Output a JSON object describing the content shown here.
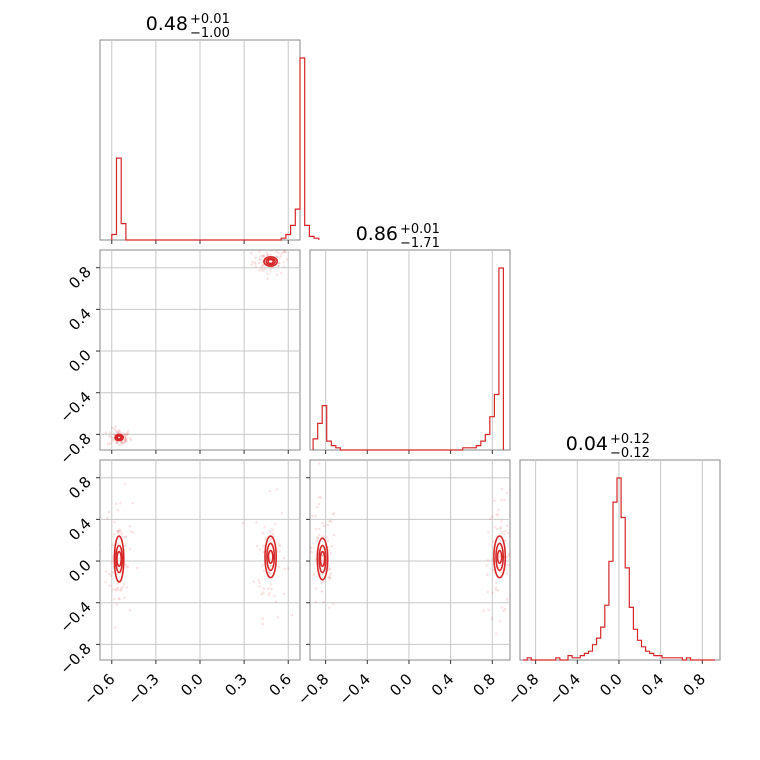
{
  "chart_data": {
    "type": "corner",
    "color": "#d62728",
    "params": [
      {
        "median": "0.48",
        "plus": "+0.01",
        "minus": "−1.00",
        "range": [
          -0.68,
          0.68
        ],
        "ticks": [
          -0.6,
          -0.3,
          0.0,
          0.3,
          0.6
        ],
        "tick_labels": [
          "−0.6",
          "−0.3",
          "0.0",
          "0.3",
          "0.6"
        ]
      },
      {
        "median": "0.86",
        "plus": "+0.01",
        "minus": "−1.71",
        "range": [
          -0.95,
          0.97
        ],
        "ticks": [
          -0.8,
          -0.4,
          0.0,
          0.4,
          0.8
        ],
        "tick_labels": [
          "−0.8",
          "−0.4",
          "0.0",
          "0.4",
          "0.8"
        ]
      },
      {
        "median": "0.04",
        "plus": "+0.12",
        "minus": "−0.12",
        "range": [
          -0.95,
          0.97
        ],
        "ticks": [
          -0.8,
          -0.4,
          0.0,
          0.4,
          0.8
        ],
        "tick_labels": [
          "−0.8",
          "−0.4",
          "0.0",
          "0.4",
          "0.8"
        ]
      }
    ],
    "histograms": [
      {
        "param": 0,
        "edges_start": -0.6,
        "bin_width": 0.032,
        "counts": [
          0.03,
          0.45,
          0.09,
          0,
          0,
          0,
          0,
          0,
          0,
          0,
          0,
          0,
          0,
          0,
          0,
          0,
          0,
          0,
          0,
          0,
          0,
          0,
          0,
          0,
          0,
          0,
          0,
          0,
          0,
          0,
          0,
          0,
          0,
          0,
          0,
          0,
          0.01,
          0.03,
          0.08,
          0.17,
          1.0,
          0.08,
          0.02,
          0.01
        ]
      },
      {
        "param": 1,
        "edges_start": -0.92,
        "bin_width": 0.0435,
        "counts": [
          0.05,
          0.12,
          0.2,
          0.04,
          0.02,
          0.01,
          0,
          0,
          0,
          0,
          0,
          0,
          0,
          0,
          0,
          0,
          0,
          0,
          0,
          0,
          0,
          0,
          0,
          0,
          0,
          0,
          0,
          0,
          0,
          0,
          0,
          0,
          0,
          0.01,
          0.01,
          0.01,
          0.02,
          0.04,
          0.07,
          0.15,
          0.25,
          0.82
        ]
      },
      {
        "param": 2,
        "edges_start": -0.92,
        "bin_width": 0.0392,
        "counts": [
          0,
          0.01,
          0,
          0,
          0,
          0,
          0,
          0,
          0.01,
          0,
          0,
          0.02,
          0.01,
          0.01,
          0.02,
          0.03,
          0.04,
          0.07,
          0.1,
          0.15,
          0.25,
          0.45,
          0.72,
          0.83,
          0.65,
          0.42,
          0.24,
          0.14,
          0.09,
          0.06,
          0.04,
          0.03,
          0.02,
          0.02,
          0.01,
          0.01,
          0.01,
          0.01,
          0.01,
          0.0,
          0.01,
          0.0,
          0.0,
          0.0,
          0.0,
          0.0,
          0.0
        ]
      }
    ],
    "pairs": [
      {
        "x_param": 0,
        "y_param": 1,
        "modes": [
          {
            "cx": 0.48,
            "cy": 0.86,
            "sx": [
              0.018,
              0.03,
              0.045
            ],
            "sy": [
              0.018,
              0.03,
              0.045
            ]
          },
          {
            "cx": -0.55,
            "cy": -0.83,
            "sx": [
              0.012,
              0.02,
              0.028
            ],
            "sy": [
              0.012,
              0.02,
              0.03
            ]
          }
        ]
      },
      {
        "x_param": 0,
        "y_param": 2,
        "modes": [
          {
            "cx": 0.48,
            "cy": 0.04,
            "sx": [
              0.015,
              0.025,
              0.038
            ],
            "sy": [
              0.06,
              0.13,
              0.2
            ]
          },
          {
            "cx": -0.55,
            "cy": 0.02,
            "sx": [
              0.014,
              0.022,
              0.032
            ],
            "sy": [
              0.07,
              0.13,
              0.22
            ]
          }
        ]
      },
      {
        "x_param": 1,
        "y_param": 2,
        "modes": [
          {
            "cx": 0.87,
            "cy": 0.04,
            "sx": [
              0.02,
              0.035,
              0.055
            ],
            "sy": [
              0.06,
              0.13,
              0.2
            ]
          },
          {
            "cx": -0.83,
            "cy": 0.02,
            "sx": [
              0.02,
              0.032,
              0.05
            ],
            "sy": [
              0.07,
              0.13,
              0.2
            ]
          }
        ]
      }
    ]
  }
}
